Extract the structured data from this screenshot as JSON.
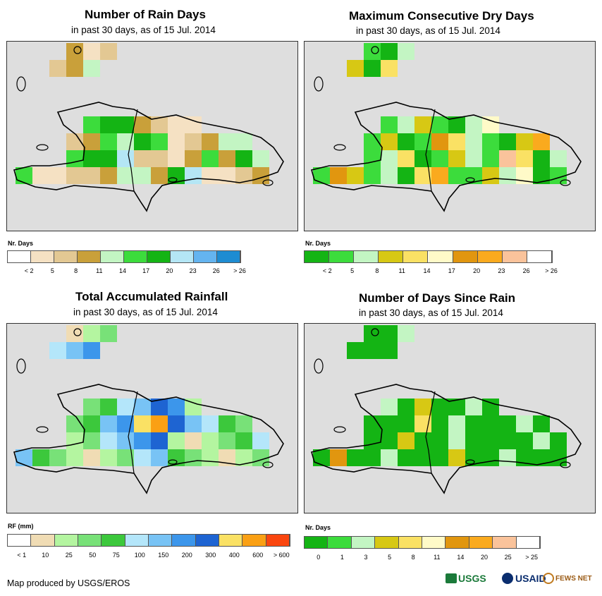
{
  "panels": [
    {
      "id": "rain-days",
      "title": "Number of Rain Days",
      "subtitle": "in past 30 days, as of 15 Jul. 2014",
      "legend_title": "Nr. Days",
      "colors": [
        "#ffffff",
        "#f5e1c3",
        "#e3c893",
        "#c9a03a",
        "#c3f5c3",
        "#3cdc3c",
        "#14b414",
        "#b4e6f5",
        "#64b4f0",
        "#1e8cd2"
      ],
      "labels": [
        "< 2",
        "5",
        "8",
        "11",
        "14",
        "17",
        "20",
        "23",
        "26",
        "> 26"
      ],
      "cells": [
        3,
        1,
        2,
        2,
        3,
        4,
        5,
        6,
        6,
        3,
        2,
        1,
        1,
        2,
        3,
        5,
        4,
        6,
        5,
        1,
        2,
        3,
        4,
        4,
        5,
        6,
        6,
        7,
        2,
        2,
        1,
        3,
        5,
        3,
        6,
        4,
        5,
        1,
        1,
        2,
        2,
        3,
        4,
        4,
        3,
        6,
        7,
        1,
        1,
        2,
        3
      ]
    },
    {
      "id": "max-dry-days",
      "title": "Maximum Consecutive Dry Days",
      "subtitle": "in past 30 days, as of 15 Jul. 2014",
      "legend_title": "Nr. Days",
      "colors": [
        "#14b414",
        "#3cdc3c",
        "#c3f5c3",
        "#d7c814",
        "#fae164",
        "#fffac8",
        "#e1960f",
        "#faaa1e",
        "#fac39b",
        "#ffffff"
      ],
      "labels": [
        "< 2",
        "5",
        "8",
        "11",
        "14",
        "17",
        "20",
        "23",
        "26",
        "> 26"
      ],
      "cells": [
        1,
        0,
        2,
        3,
        0,
        4,
        1,
        2,
        3,
        1,
        0,
        2,
        5,
        1,
        3,
        0,
        1,
        6,
        4,
        2,
        1,
        0,
        3,
        7,
        1,
        2,
        4,
        0,
        1,
        3,
        2,
        1,
        8,
        4,
        0,
        2,
        1,
        6,
        3,
        1,
        2,
        0,
        4,
        7,
        1,
        1,
        3,
        2,
        5,
        0,
        1
      ]
    },
    {
      "id": "total-rainfall",
      "title": "Total Accumulated Rainfall",
      "subtitle": "in past 30 days, as of 15 Jul. 2014",
      "legend_title": "RF (mm)",
      "colors": [
        "#ffffff",
        "#f0dcb4",
        "#b4f5a0",
        "#78e178",
        "#3cc83c",
        "#b4e6fa",
        "#78c3f5",
        "#3c96eb",
        "#1e64d2",
        "#fae164",
        "#faa014",
        "#fa460f"
      ],
      "labels": [
        "< 1",
        "10",
        "25",
        "50",
        "75",
        "100",
        "150",
        "200",
        "300",
        "400",
        "600",
        "> 600"
      ],
      "cells": [
        1,
        2,
        3,
        5,
        6,
        7,
        3,
        4,
        5,
        6,
        8,
        7,
        2,
        3,
        4,
        6,
        7,
        9,
        10,
        8,
        6,
        5,
        4,
        3,
        2,
        3,
        5,
        6,
        7,
        8,
        2,
        1,
        2,
        3,
        4,
        5,
        6,
        4,
        3,
        2,
        1,
        2,
        3,
        5,
        6,
        4,
        3,
        2,
        1,
        2,
        3
      ]
    },
    {
      "id": "days-since-rain",
      "title": "Number of Days Since Rain",
      "subtitle": "in past 30 days, as of 15 Jul. 2014",
      "legend_title": "Nr. Days",
      "colors": [
        "#14b414",
        "#3cdc3c",
        "#c3f5c3",
        "#d7c814",
        "#fae164",
        "#fffac8",
        "#e1960f",
        "#faaa1e",
        "#fac39b",
        "#ffffff"
      ],
      "labels": [
        "0",
        "1",
        "3",
        "5",
        "8",
        "11",
        "14",
        "20",
        "25",
        "> 25"
      ],
      "cells": [
        0,
        0,
        2,
        0,
        0,
        0,
        2,
        0,
        3,
        0,
        0,
        2,
        0,
        0,
        0,
        0,
        4,
        0,
        2,
        0,
        0,
        0,
        2,
        0,
        0,
        0,
        3,
        0,
        0,
        2,
        0,
        0,
        0,
        0,
        2,
        0,
        0,
        6,
        0,
        0,
        2,
        0,
        0,
        0,
        3,
        0,
        0,
        2,
        0,
        0,
        0
      ]
    }
  ],
  "credit": "Map produced by USGS/EROS",
  "logos": {
    "usgs": "USGS",
    "usaid": "USAID",
    "fews": "FEWS NET"
  }
}
